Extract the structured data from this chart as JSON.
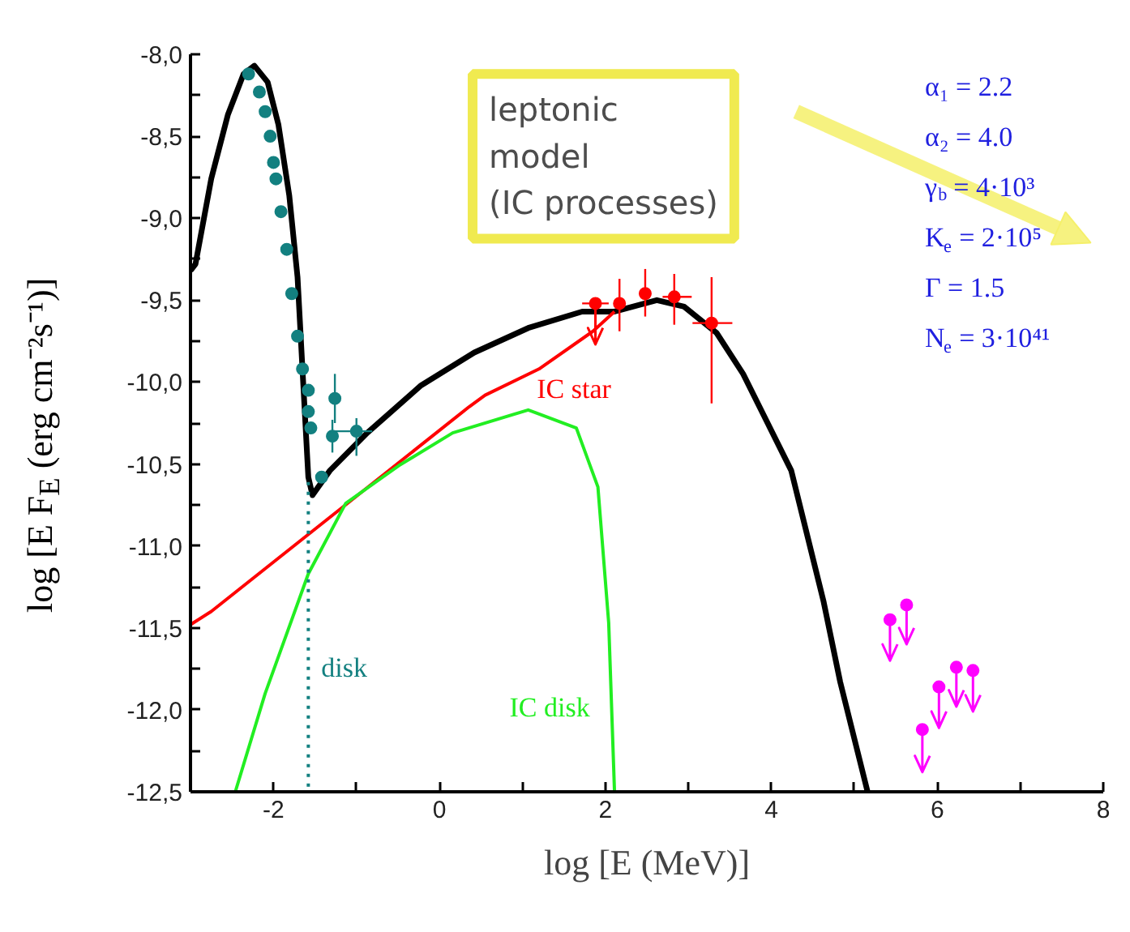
{
  "chart_data": {
    "type": "line",
    "xlabel": "log [E (MeV)]",
    "ylabel": "log [E F$_{E}$ (erg cm⁻²s⁻¹)]",
    "xlim": [
      -3,
      8
    ],
    "ylim": [
      -12.5,
      -8.0
    ],
    "xticks": [
      {
        "value": -3,
        "label": null
      },
      -2,
      {
        "value": -1,
        "label": null
      },
      0,
      {
        "value": 1,
        "label": null
      },
      2,
      {
        "value": 3,
        "label": null
      },
      4,
      {
        "value": 5,
        "label": null
      },
      6,
      {
        "value": 7,
        "label": null
      },
      8
    ],
    "yticks": [
      {
        "value": -8.0,
        "label": "-8,0"
      },
      {
        "value": -8.25,
        "label": null
      },
      {
        "value": -8.5,
        "label": "-8,5"
      },
      {
        "value": -8.75,
        "label": null
      },
      {
        "value": -9.0,
        "label": "-9,0"
      },
      {
        "value": -9.25,
        "label": null
      },
      {
        "value": -9.5,
        "label": "-9,5"
      },
      {
        "value": -9.75,
        "label": null
      },
      {
        "value": -10.0,
        "label": "-10,0"
      },
      {
        "value": -10.25,
        "label": null
      },
      {
        "value": -10.5,
        "label": "-10,5"
      },
      {
        "value": -10.75,
        "label": null
      },
      {
        "value": -11.0,
        "label": "-11,0"
      },
      {
        "value": -11.25,
        "label": null
      },
      {
        "value": -11.5,
        "label": "-11,5"
      },
      {
        "value": -11.75,
        "label": null
      },
      {
        "value": -12.0,
        "label": "-12,0"
      },
      {
        "value": -12.25,
        "label": null
      },
      {
        "value": -12.5,
        "label": "-12,5"
      }
    ],
    "grid": false,
    "annotations": [
      "leptonic\nmodel\n(IC processes)",
      "α₁ = 2.2\nα₂ = 4.0\nγ$_{b}$ = 4·10³\nK$_{e}$ = 2·10⁵\nΓ = 1.5\nN$_{e}$ = 3·10⁴¹"
    ],
    "series": [
      {
        "type": "line",
        "color": "#000000",
        "x": [
          -3.0,
          -2.94,
          -2.75,
          -2.55,
          -2.36,
          -2.23,
          -2.07,
          -1.94,
          -1.81,
          -1.71,
          -1.64,
          -1.58,
          -1.53,
          -1.32,
          -0.87,
          -0.22,
          0.42,
          1.07,
          1.72,
          2.11,
          2.62,
          2.95,
          3.34,
          3.66,
          4.24,
          4.63,
          4.83,
          5.16
        ],
        "values": [
          -9.32,
          -9.28,
          -8.76,
          -8.37,
          -8.12,
          -8.07,
          -8.17,
          -8.43,
          -8.86,
          -9.36,
          -10.02,
          -10.58,
          -10.69,
          -10.54,
          -10.31,
          -10.02,
          -9.82,
          -9.67,
          -9.57,
          -9.57,
          -9.5,
          -9.54,
          -9.7,
          -9.95,
          -10.54,
          -11.34,
          -11.83,
          -12.5
        ]
      },
      {
        "type": "line",
        "name": "IC star",
        "color": "#ff0000",
        "x": [
          -3.0,
          -2.75,
          0.36,
          0.55,
          1.2,
          1.85,
          2.11
        ],
        "values": [
          -11.48,
          -11.4,
          -10.15,
          -10.08,
          -9.92,
          -9.69,
          -9.57
        ]
      },
      {
        "type": "line",
        "name": "IC disk",
        "color": "#22ee22",
        "x": [
          -2.46,
          -2.1,
          -1.58,
          -1.13,
          -0.49,
          0.16,
          1.07,
          1.65,
          1.91,
          2.04,
          2.11
        ],
        "values": [
          -12.5,
          -11.9,
          -11.17,
          -10.74,
          -10.51,
          -10.31,
          -10.17,
          -10.28,
          -10.64,
          -11.47,
          -12.5
        ]
      },
      {
        "type": "line",
        "name": "disk",
        "color": "#138080",
        "line_style": "dotted",
        "x": [
          -1.58,
          -1.58
        ],
        "values": [
          -10.61,
          -12.5
        ]
      },
      {
        "type": "scatter",
        "marker": "circle",
        "color": "#138080",
        "x": [
          -2.3,
          -2.17,
          -2.1,
          -2.04,
          -2.0,
          -1.97,
          -1.91,
          -1.84,
          -1.78,
          -1.71,
          -1.65,
          -1.58,
          -1.58,
          -1.55,
          -1.29,
          -1.26,
          -1.42,
          -1.0
        ],
        "values": [
          -8.12,
          -8.23,
          -8.35,
          -8.5,
          -8.66,
          -8.76,
          -8.96,
          -9.19,
          -9.46,
          -9.72,
          -9.92,
          -10.05,
          -10.18,
          -10.28,
          -10.33,
          -10.1,
          -10.58,
          -10.3
        ],
        "errors": [
          null,
          null,
          null,
          null,
          null,
          null,
          null,
          null,
          null,
          null,
          null,
          null,
          null,
          null,
          0.1,
          0.15,
          null,
          [
            -10.45,
            -10.22
          ]
        ],
        "xerrors": [
          null,
          null,
          null,
          null,
          null,
          null,
          null,
          null,
          null,
          null,
          null,
          null,
          null,
          null,
          null,
          null,
          null,
          [
            -1.26,
            -0.81
          ]
        ]
      },
      {
        "type": "scatter",
        "marker": "circle",
        "color": "#ff0000",
        "x": [
          1.88,
          2.17,
          2.48,
          2.83,
          3.28
        ],
        "values": [
          -9.52,
          -9.52,
          -9.46,
          -9.48,
          -9.64
        ],
        "errors": [
          [
            -9.77,
            -9.52
          ],
          [
            -9.69,
            -9.37
          ],
          [
            -9.6,
            -9.31
          ],
          [
            -9.65,
            -9.34
          ],
          [
            -10.13,
            -9.36
          ]
        ],
        "xerrors": [
          [
            1.72,
            2.04
          ],
          null,
          null,
          [
            2.69,
            3.04
          ],
          [
            3.05,
            3.53
          ]
        ]
      },
      {
        "type": "scatter",
        "marker": "circle",
        "color": "#ff00ff",
        "x": [
          5.43,
          5.63,
          6.23,
          6.43,
          6.02,
          5.82
        ],
        "values": [
          -11.45,
          -11.36,
          -11.74,
          -11.76,
          -11.86,
          -12.12
        ],
        "errors": [
          [
            -11.7,
            -11.45
          ],
          [
            -11.6,
            -11.36
          ],
          [
            -11.98,
            -11.74
          ],
          [
            -12.01,
            -11.76
          ],
          [
            -12.11,
            -11.86
          ],
          [
            -12.38,
            -12.12
          ]
        ],
        "xerrors": [
          0.07,
          0.07,
          0.07,
          0.07,
          0.07,
          0.07
        ]
      }
    ]
  }
}
